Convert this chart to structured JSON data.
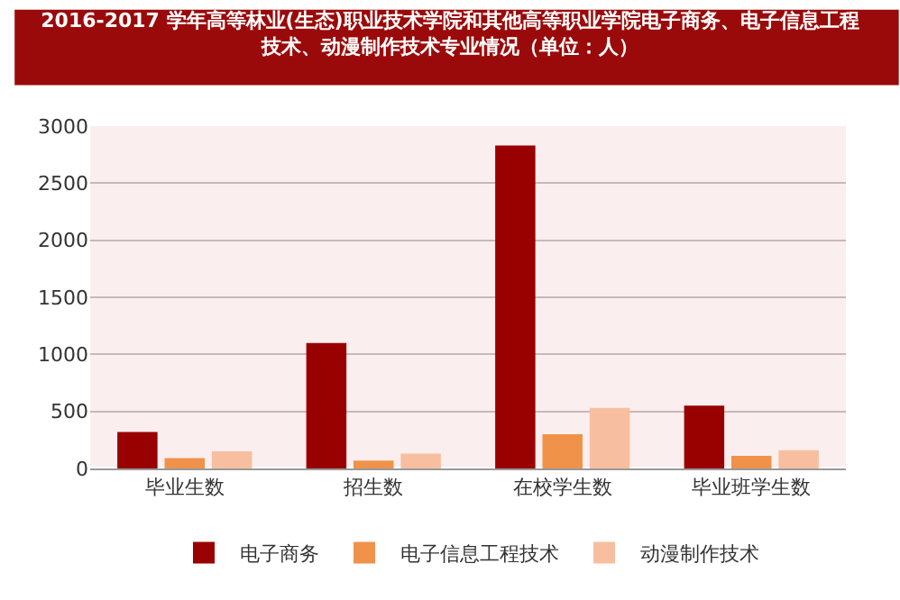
{
  "chart_data": {
    "type": "bar",
    "title": "2016-2017 学年高等林业(生态)职业技术学院和其他高等职业学院电子商务、电子信息工程技术、动漫制作技术专业情况（单位：人）",
    "categories": [
      "毕业生数",
      "招生数",
      "在校学生数",
      "毕业班学生数"
    ],
    "series": [
      {
        "name": "电子商务",
        "color": "#990000",
        "values": [
          320,
          1100,
          2830,
          550
        ]
      },
      {
        "name": "电子信息工程技术",
        "color": "#f0924a",
        "values": [
          90,
          70,
          300,
          110
        ]
      },
      {
        "name": "动漫制作技术",
        "color": "#f7bfa0",
        "values": [
          150,
          130,
          530,
          160
        ]
      }
    ],
    "ylim": [
      0,
      3000
    ],
    "yticks": [
      0,
      500,
      1000,
      1500,
      2000,
      2500,
      3000
    ],
    "grid": "y",
    "legend": "bottom"
  }
}
